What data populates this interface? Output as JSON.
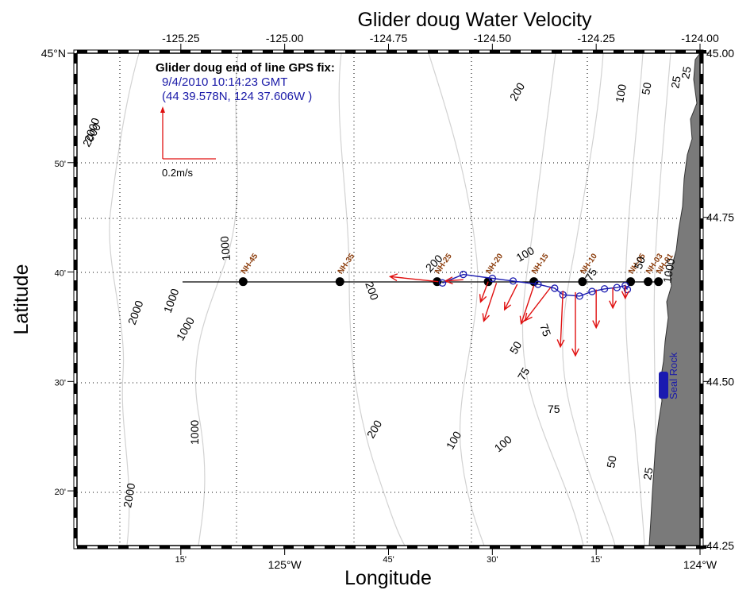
{
  "title": "Glider doug Water Velocity",
  "x_axis_label": "Longitude",
  "y_axis_label": "Latitude",
  "top_ticks": [
    "-125.25",
    "-125.00",
    "-124.75",
    "-124.50",
    "-124.25",
    "-124.00"
  ],
  "bottom_ticks": [
    {
      "text": "15'",
      "small": true
    },
    {
      "text": "125°W",
      "small": false
    },
    {
      "text": "45'",
      "small": true
    },
    {
      "text": "30'",
      "small": true
    },
    {
      "text": "15'",
      "small": true
    },
    {
      "text": "124°W",
      "small": false
    }
  ],
  "left_ticks": [
    {
      "text": "45°N",
      "small": false
    },
    {
      "text": "50'",
      "small": true
    },
    {
      "text": "40'",
      "small": true
    },
    {
      "text": "30'",
      "small": true
    },
    {
      "text": "20'",
      "small": true
    }
  ],
  "right_ticks": [
    "45.00",
    "44.75",
    "44.50",
    "44.25"
  ],
  "info": {
    "heading": "Glider doug end of line GPS fix:",
    "time": "9/4/2010 10:14:23 GMT",
    "position": "(44  39.578N, 124  37.606W )"
  },
  "scale": {
    "label": "0.2m/s",
    "speed": 0.2
  },
  "stations": [
    {
      "name": "NH-45",
      "lon": -125.1
    },
    {
      "name": "NH-35",
      "lon": -124.867
    },
    {
      "name": "NH-25",
      "lon": -124.633
    },
    {
      "name": "NH-20",
      "lon": -124.51
    },
    {
      "name": "NH-15",
      "lon": -124.4
    },
    {
      "name": "NH-10",
      "lon": -124.283
    },
    {
      "name": "NH-05",
      "lon": -124.167
    },
    {
      "name": "NH-03",
      "lon": -124.125
    },
    {
      "name": "NH-01",
      "lon": -124.1
    }
  ],
  "station_lat": 44.652,
  "landmark": "Seal Rock",
  "contour_labels": [
    "2000",
    "1000",
    "1000",
    "1000",
    "2000",
    "2000",
    "1000",
    "200",
    "200",
    "200",
    "200",
    "100",
    "100",
    "100",
    "100",
    "75",
    "75",
    "75",
    "75",
    "50",
    "50",
    "50",
    "50",
    "25",
    "25",
    "25",
    "1000",
    "2000"
  ],
  "colors": {
    "land": "#7a7a7a",
    "contour": "#d4d4d4",
    "track": "#1a1ab0",
    "vector": "#e01010",
    "station": "#000000",
    "station_label": "#8a3b0a"
  },
  "map_data": {
    "lon_range": [
      -125.5,
      -124.0
    ],
    "lat_range": [
      44.25,
      45.0
    ],
    "glider_track": [
      [
        -124.62,
        44.65
      ],
      [
        -124.57,
        44.663
      ],
      [
        -124.5,
        44.657
      ],
      [
        -124.45,
        44.653
      ],
      [
        -124.39,
        44.648
      ],
      [
        -124.35,
        44.642
      ],
      [
        -124.33,
        44.632
      ],
      [
        -124.29,
        44.63
      ],
      [
        -124.26,
        44.637
      ],
      [
        -124.23,
        44.641
      ],
      [
        -124.2,
        44.643
      ],
      [
        -124.18,
        44.646
      ],
      [
        -124.175,
        44.64
      ]
    ],
    "velocity_vectors": [
      [
        -124.63,
        44.652,
        -0.19,
        0.02
      ],
      [
        -124.57,
        44.655,
        -0.07,
        -0.005
      ],
      [
        -124.51,
        44.652,
        -0.03,
        -0.08
      ],
      [
        -124.49,
        44.65,
        -0.05,
        -0.15
      ],
      [
        -124.44,
        44.648,
        -0.05,
        -0.1
      ],
      [
        -124.4,
        44.646,
        -0.05,
        -0.15
      ],
      [
        -124.36,
        44.643,
        -0.1,
        -0.13
      ],
      [
        -124.33,
        44.638,
        -0.01,
        -0.22
      ],
      [
        -124.3,
        44.636,
        0.0,
        -0.25
      ],
      [
        -124.25,
        44.64,
        0.0,
        -0.15
      ],
      [
        -124.21,
        44.643,
        0.0,
        -0.08
      ],
      [
        -124.18,
        44.646,
        0.0,
        -0.05
      ]
    ]
  }
}
